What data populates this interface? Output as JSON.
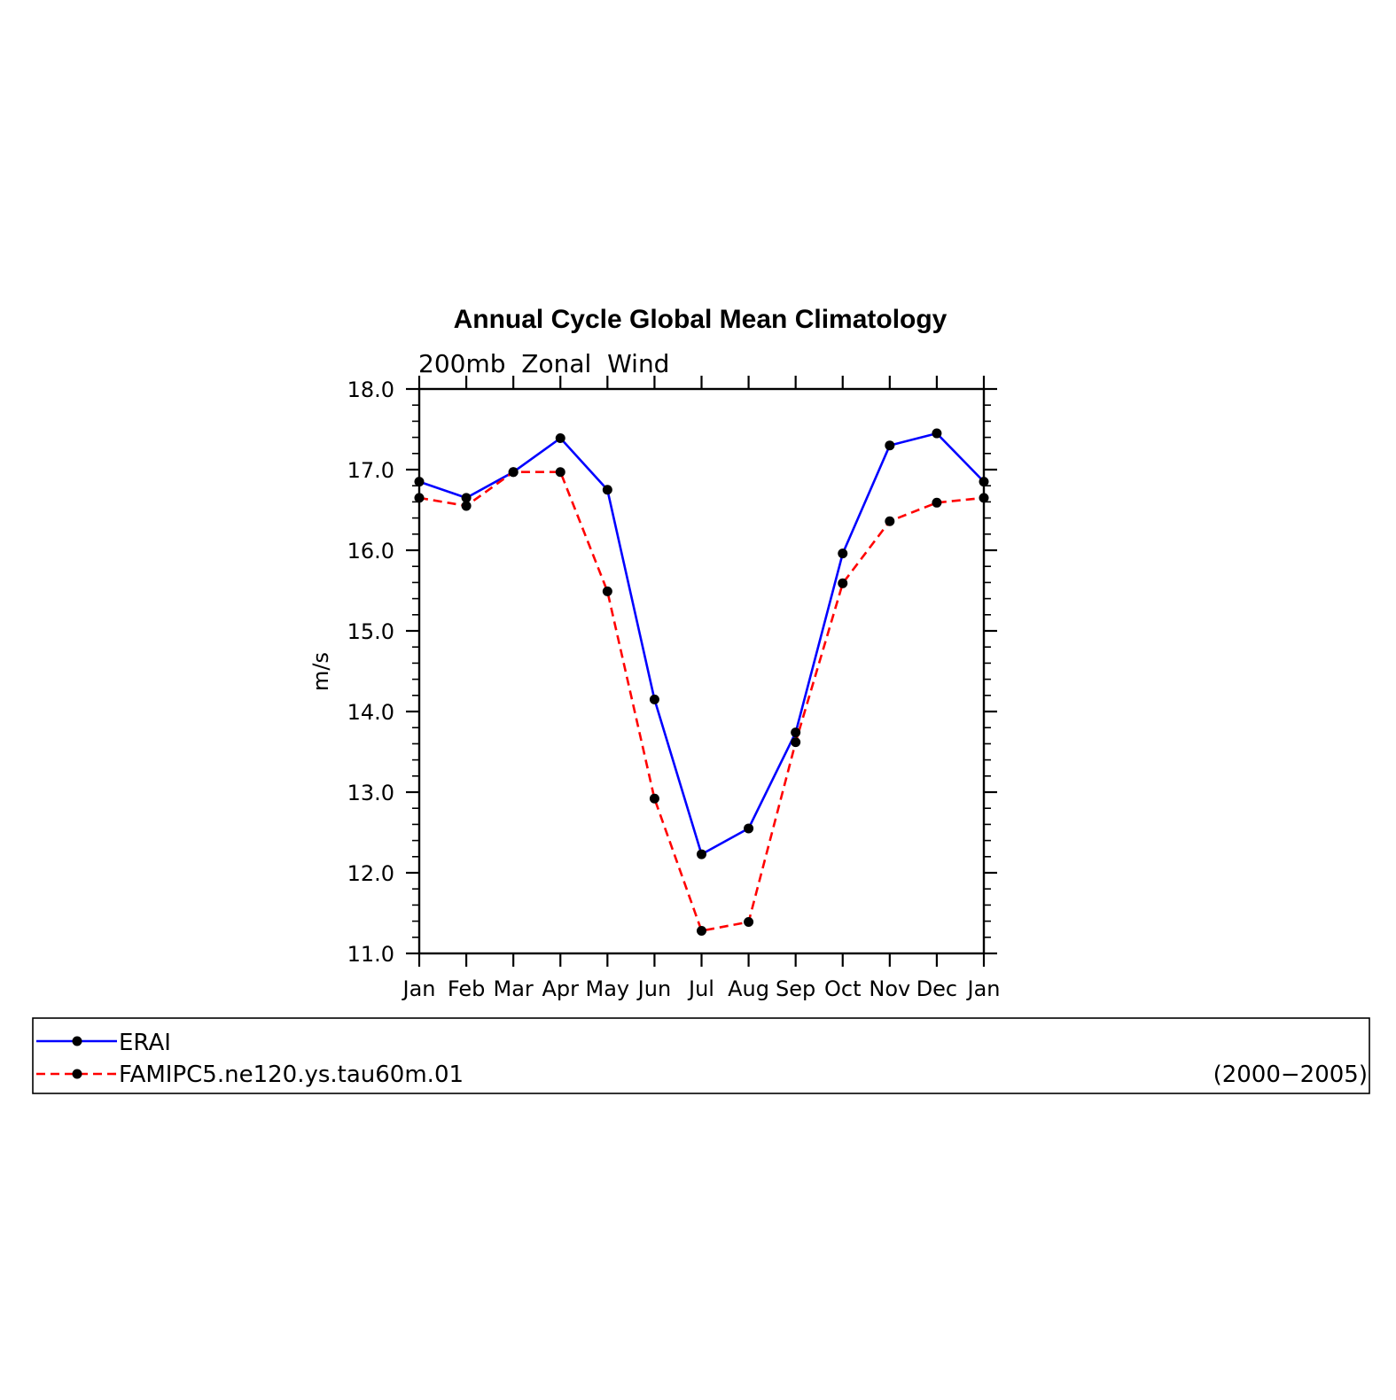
{
  "chart_data": {
    "type": "line",
    "title": "Annual Cycle Global Mean Climatology",
    "subtitle": "200mb  Zonal  Wind",
    "ylabel": "m/s",
    "xlabel": "",
    "categories": [
      "Jan",
      "Feb",
      "Mar",
      "Apr",
      "May",
      "Jun",
      "Jul",
      "Aug",
      "Sep",
      "Oct",
      "Nov",
      "Dec",
      "Jan"
    ],
    "ylim": [
      11.0,
      18.0
    ],
    "yticks": [
      "11.0",
      "12.0",
      "13.0",
      "14.0",
      "15.0",
      "16.0",
      "17.0",
      "18.0"
    ],
    "grid": false,
    "legend_position": "bottom",
    "series": [
      {
        "name": "ERAI",
        "color": "#0000ff",
        "style": "solid",
        "marker": "filled-circle",
        "values": [
          16.85,
          16.65,
          16.97,
          17.39,
          16.75,
          14.15,
          12.23,
          12.55,
          13.74,
          15.96,
          17.3,
          17.45,
          16.85
        ]
      },
      {
        "name": "FAMIPC5.ne120.ys.tau60m.01",
        "color": "#ff0000",
        "style": "dashed",
        "marker": "filled-circle",
        "values": [
          16.65,
          16.55,
          16.97,
          16.97,
          15.49,
          12.92,
          11.28,
          11.39,
          13.62,
          15.59,
          16.36,
          16.59,
          16.65
        ]
      }
    ],
    "annotation": "(2000−2005)"
  }
}
